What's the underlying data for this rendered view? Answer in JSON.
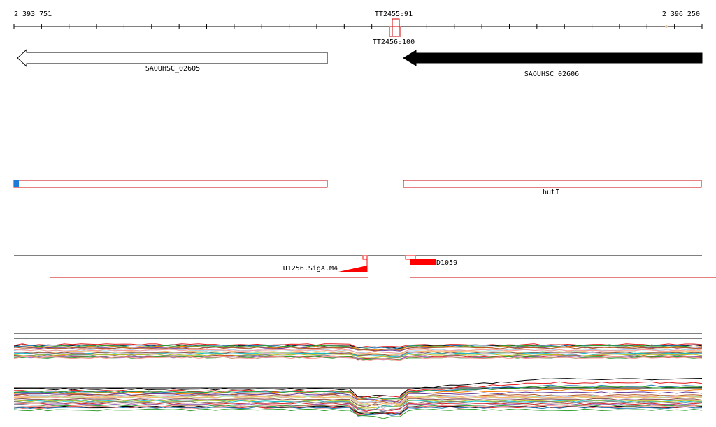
{
  "ruler": {
    "start_label": "2 393 751",
    "end_label": "2 396 250",
    "color": "#000000"
  },
  "terminators": [
    {
      "label": "TT2455:91",
      "label_position": "above"
    },
    {
      "label": "TT2456:100",
      "label_position": "below"
    }
  ],
  "genes": [
    {
      "name": "SAOUHSC_02605",
      "strand": "reverse",
      "style": "outline"
    },
    {
      "name": "SAOUHSC_02606",
      "strand": "reverse",
      "style": "filled"
    }
  ],
  "operons": [
    {
      "name": "",
      "start_marker_color": "#1e7bd8"
    },
    {
      "name": "hutI"
    }
  ],
  "features": [
    {
      "label": "U1256.SigA.M4"
    },
    {
      "label": "D1059"
    }
  ],
  "colors": {
    "feature_red": "#ff0000",
    "operon_outline": "#cc0000",
    "operon_start_marker": "#1e7bd8"
  },
  "expression_panels": [
    {
      "name": "expression-panel-upper"
    },
    {
      "name": "expression-panel-lower"
    }
  ]
}
